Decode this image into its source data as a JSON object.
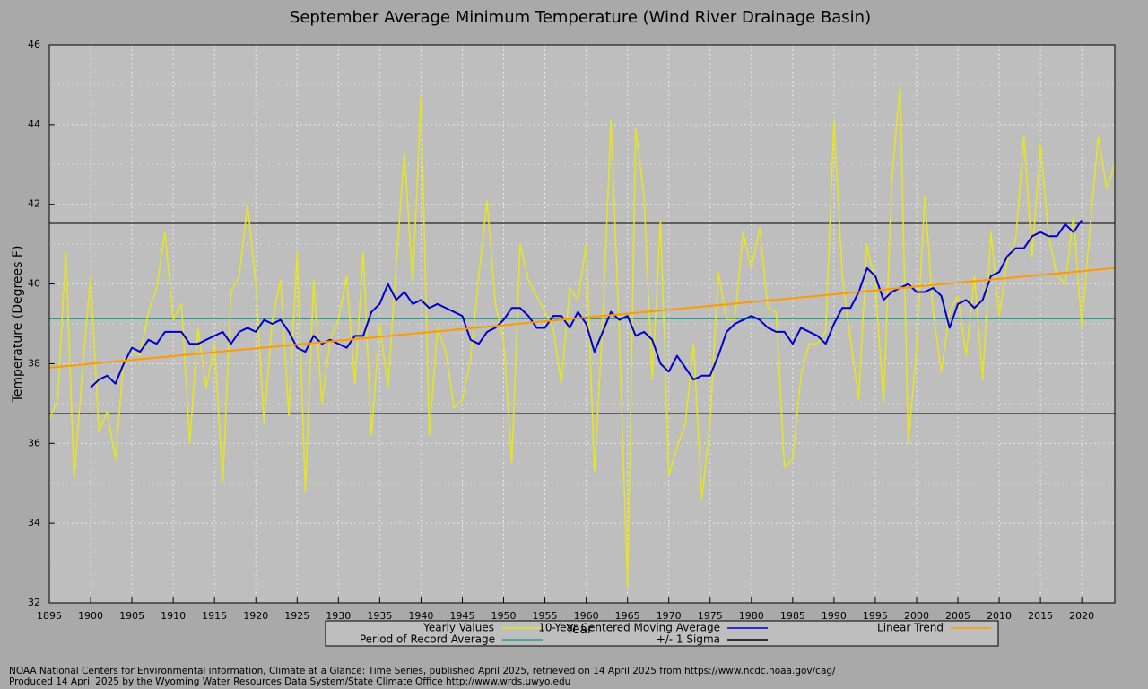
{
  "chart_data": {
    "type": "line",
    "title": "September Average Minimum Temperature (Wind River Drainage Basin)",
    "xlabel": "Year",
    "ylabel": "Temperature (Degrees F)",
    "x": [
      1895,
      1896,
      1897,
      1898,
      1899,
      1900,
      1901,
      1902,
      1903,
      1904,
      1905,
      1906,
      1907,
      1908,
      1909,
      1910,
      1911,
      1912,
      1913,
      1914,
      1915,
      1916,
      1917,
      1918,
      1919,
      1920,
      1921,
      1922,
      1923,
      1924,
      1925,
      1926,
      1927,
      1928,
      1929,
      1930,
      1931,
      1932,
      1933,
      1934,
      1935,
      1936,
      1937,
      1938,
      1939,
      1940,
      1941,
      1942,
      1943,
      1944,
      1945,
      1946,
      1947,
      1948,
      1949,
      1950,
      1951,
      1952,
      1953,
      1954,
      1955,
      1956,
      1957,
      1958,
      1959,
      1960,
      1961,
      1962,
      1963,
      1964,
      1965,
      1966,
      1967,
      1968,
      1969,
      1970,
      1971,
      1972,
      1973,
      1974,
      1975,
      1976,
      1977,
      1978,
      1979,
      1980,
      1981,
      1982,
      1983,
      1984,
      1985,
      1986,
      1987,
      1988,
      1989,
      1990,
      1991,
      1992,
      1993,
      1994,
      1995,
      1996,
      1997,
      1998,
      1999,
      2000,
      2001,
      2002,
      2003,
      2004,
      2005,
      2006,
      2007,
      2008,
      2009,
      2010,
      2011,
      2012,
      2013,
      2014,
      2015,
      2016,
      2017,
      2018,
      2019,
      2020,
      2021,
      2022,
      2023,
      2024
    ],
    "series": [
      {
        "name": "Yearly Values",
        "color": "#e6e619",
        "values": [
          36.6,
          37.1,
          40.8,
          35.1,
          37.8,
          40.2,
          36.3,
          36.8,
          35.6,
          38.1,
          38.3,
          38.2,
          39.3,
          39.9,
          41.3,
          39.1,
          39.5,
          36.0,
          38.9,
          37.4,
          38.5,
          35.0,
          39.8,
          40.2,
          42.0,
          40.0,
          36.5,
          39.1,
          40.1,
          36.7,
          40.8,
          34.8,
          40.1,
          37.0,
          38.6,
          39.1,
          40.2,
          37.5,
          40.8,
          36.2,
          39.0,
          37.4,
          40.5,
          43.3,
          40.0,
          44.7,
          36.2,
          38.9,
          38.3,
          36.9,
          37.1,
          38.1,
          40.2,
          42.1,
          39.5,
          38.6,
          35.5,
          41.0,
          40.1,
          39.7,
          39.3,
          38.9,
          37.5,
          39.9,
          39.6,
          41.0,
          35.3,
          39.0,
          44.1,
          38.8,
          32.4,
          43.9,
          42.2,
          37.6,
          41.6,
          35.2,
          35.9,
          36.5,
          38.5,
          34.6,
          36.5,
          40.3,
          39.1,
          39.1,
          41.3,
          40.4,
          41.4,
          39.4,
          39.3,
          35.4,
          35.6,
          37.7,
          38.5,
          38.5,
          38.8,
          44.1,
          40.2,
          38.6,
          37.1,
          41.0,
          40.0,
          37.0,
          42.6,
          45.0,
          36.0,
          38.4,
          42.2,
          39.3,
          37.8,
          39.3,
          39.7,
          38.2,
          40.2,
          37.6,
          41.3,
          39.2,
          40.6,
          41.1,
          43.7,
          40.7,
          43.5,
          41.2,
          40.2,
          40.0,
          41.7,
          38.9,
          41.4,
          43.7,
          42.4,
          43.0
        ]
      },
      {
        "name": "10-Year Centered Moving Average",
        "color": "#0000cc",
        "values": [
          null,
          null,
          null,
          null,
          null,
          37.4,
          37.6,
          37.7,
          37.5,
          38.0,
          38.4,
          38.3,
          38.6,
          38.5,
          38.8,
          38.8,
          38.8,
          38.5,
          38.5,
          38.6,
          38.7,
          38.8,
          38.5,
          38.8,
          38.9,
          38.8,
          39.1,
          39.0,
          39.1,
          38.8,
          38.4,
          38.3,
          38.7,
          38.5,
          38.6,
          38.5,
          38.4,
          38.7,
          38.7,
          39.3,
          39.5,
          40.0,
          39.6,
          39.8,
          39.5,
          39.6,
          39.4,
          39.5,
          39.4,
          39.3,
          39.2,
          38.6,
          38.5,
          38.8,
          38.9,
          39.1,
          39.4,
          39.4,
          39.2,
          38.9,
          38.9,
          39.2,
          39.2,
          38.9,
          39.3,
          39.0,
          38.3,
          38.8,
          39.3,
          39.1,
          39.2,
          38.7,
          38.8,
          38.6,
          38.0,
          37.8,
          38.2,
          37.9,
          37.6,
          37.7,
          37.7,
          38.2,
          38.8,
          39.0,
          39.1,
          39.2,
          39.1,
          38.9,
          38.8,
          38.8,
          38.5,
          38.9,
          38.8,
          38.7,
          38.5,
          39.0,
          39.4,
          39.4,
          39.8,
          40.4,
          40.2,
          39.6,
          39.8,
          39.9,
          40.0,
          39.8,
          39.8,
          39.9,
          39.7,
          38.9,
          39.5,
          39.6,
          39.4,
          39.6,
          40.2,
          40.3,
          40.7,
          40.9,
          40.9,
          41.2,
          41.3,
          41.2,
          41.2,
          41.5,
          41.3,
          41.6,
          null,
          null,
          null,
          null
        ]
      },
      {
        "name": "Linear Trend",
        "color": "#ff9900",
        "x": [
          1895,
          2024
        ],
        "values": [
          37.9,
          40.4
        ]
      }
    ],
    "reference_lines": [
      {
        "name": "Period of Record Average",
        "color": "#20a090",
        "values": [
          39.13
        ]
      },
      {
        "name": "+/- 1 Sigma",
        "color": "#000000",
        "values": [
          36.75,
          41.52
        ]
      }
    ],
    "xlim": [
      1895,
      2024
    ],
    "xticks": [
      1895,
      1900,
      1905,
      1910,
      1915,
      1920,
      1925,
      1930,
      1935,
      1940,
      1945,
      1950,
      1955,
      1960,
      1965,
      1970,
      1975,
      1980,
      1985,
      1990,
      1995,
      2000,
      2005,
      2010,
      2015,
      2020
    ],
    "ylim": [
      32,
      46
    ],
    "yticks": [
      32,
      34,
      36,
      38,
      40,
      42,
      44,
      46
    ],
    "grid": true,
    "footer": [
      "NOAA National Centers for Environmental information, Climate at a Glance: Time Series, published April 2025, retrieved on 14 April 2025 from https://www.ncdc.noaa.gov/cag/",
      "Produced 14 April 2025 by the Wyoming Water Resources Data System/State Climate Office http://www.wrds.uwyo.edu"
    ]
  }
}
